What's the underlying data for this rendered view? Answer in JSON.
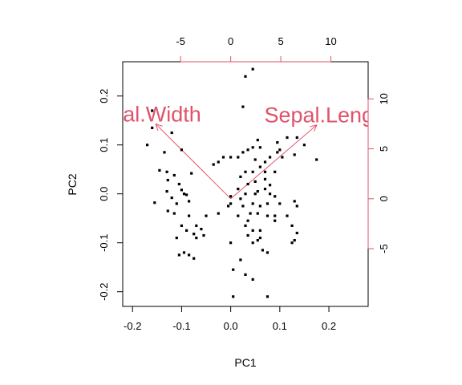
{
  "chart_data": {
    "type": "scatter",
    "subtype": "pca-biplot",
    "title": "",
    "xlabel": "PC1",
    "ylabel": "PC2",
    "xlim": [
      -0.22,
      0.28
    ],
    "ylim": [
      -0.23,
      0.27
    ],
    "x_ticks": [
      "-0.2",
      "-0.1",
      "0.0",
      "0.1",
      "0.2"
    ],
    "y_ticks": [
      "-0.2",
      "-0.1",
      "0.0",
      "0.1",
      "0.2"
    ],
    "secondary_x_ticks": [
      "-5",
      "0",
      "5",
      "10"
    ],
    "secondary_y_ticks": [
      "-5",
      "0",
      "5",
      "10"
    ],
    "secondary_xlim": [
      -10.78,
      13.72
    ],
    "secondary_ylim": [
      -10.78,
      13.72
    ],
    "point_color": "#000000",
    "arrow_color": "#DF536B",
    "grid": false,
    "points": [
      [
        -0.16,
        0.17
      ],
      [
        -0.17,
        0.1
      ],
      [
        -0.16,
        0.135
      ],
      [
        -0.135,
        0.085
      ],
      [
        -0.1,
        0.09
      ],
      [
        -0.12,
        0.125
      ],
      [
        -0.145,
        0.048
      ],
      [
        -0.13,
        0.045
      ],
      [
        -0.115,
        0.038
      ],
      [
        -0.08,
        0.042
      ],
      [
        -0.128,
        0.028
      ],
      [
        -0.105,
        0.02
      ],
      [
        -0.1,
        0.008
      ],
      [
        -0.095,
        0.0
      ],
      [
        -0.13,
        0.005
      ],
      [
        -0.155,
        -0.018
      ],
      [
        -0.09,
        -0.002
      ],
      [
        -0.12,
        -0.008
      ],
      [
        -0.11,
        -0.02
      ],
      [
        -0.085,
        -0.015
      ],
      [
        -0.128,
        -0.035
      ],
      [
        -0.115,
        -0.04
      ],
      [
        -0.085,
        -0.045
      ],
      [
        -0.05,
        -0.045
      ],
      [
        -0.1,
        -0.065
      ],
      [
        -0.07,
        -0.065
      ],
      [
        -0.06,
        -0.072
      ],
      [
        -0.09,
        -0.075
      ],
      [
        -0.075,
        -0.082
      ],
      [
        -0.055,
        -0.085
      ],
      [
        -0.07,
        -0.09
      ],
      [
        -0.11,
        -0.09
      ],
      [
        -0.095,
        -0.12
      ],
      [
        -0.085,
        -0.125
      ],
      [
        -0.105,
        -0.125
      ],
      [
        -0.075,
        -0.132
      ],
      [
        0.03,
        0.24
      ],
      [
        0.045,
        0.255
      ],
      [
        0.025,
        0.178
      ],
      [
        0.095,
        0.105
      ],
      [
        0.115,
        0.115
      ],
      [
        0.135,
        0.115
      ],
      [
        0.15,
        0.1
      ],
      [
        0.1,
        0.09
      ],
      [
        0.095,
        0.085
      ],
      [
        0.13,
        0.08
      ],
      [
        0.175,
        0.07
      ],
      [
        0.105,
        0.075
      ],
      [
        0.055,
        0.11
      ],
      [
        0.045,
        0.095
      ],
      [
        0.06,
        0.095
      ],
      [
        0.035,
        0.09
      ],
      [
        0.025,
        0.085
      ],
      [
        0.0,
        0.075
      ],
      [
        0.015,
        0.075
      ],
      [
        -0.015,
        0.075
      ],
      [
        -0.035,
        0.06
      ],
      [
        -0.025,
        0.065
      ],
      [
        0.05,
        0.07
      ],
      [
        0.08,
        0.075
      ],
      [
        0.07,
        0.065
      ],
      [
        0.06,
        0.055
      ],
      [
        0.03,
        0.045
      ],
      [
        0.045,
        0.045
      ],
      [
        0.09,
        0.045
      ],
      [
        0.07,
        0.045
      ],
      [
        0.02,
        0.035
      ],
      [
        0.035,
        0.02
      ],
      [
        0.05,
        0.025
      ],
      [
        0.07,
        0.03
      ],
      [
        0.07,
        0.01
      ],
      [
        0.08,
        0.018
      ],
      [
        0.05,
        0.0
      ],
      [
        0.055,
        0.005
      ],
      [
        0.03,
        0.0
      ],
      [
        0.015,
        0.01
      ],
      [
        0.0,
        -0.005
      ],
      [
        0.02,
        -0.01
      ],
      [
        0.08,
        0.0
      ],
      [
        0.09,
        -0.005
      ],
      [
        0.0,
        -0.02
      ],
      [
        -0.005,
        -0.025
      ],
      [
        0.025,
        -0.025
      ],
      [
        0.045,
        -0.02
      ],
      [
        0.06,
        -0.025
      ],
      [
        0.075,
        -0.02
      ],
      [
        0.1,
        -0.02
      ],
      [
        0.13,
        -0.015
      ],
      [
        0.135,
        -0.025
      ],
      [
        -0.025,
        -0.04
      ],
      [
        0.015,
        -0.045
      ],
      [
        0.04,
        -0.04
      ],
      [
        0.055,
        -0.04
      ],
      [
        0.075,
        -0.045
      ],
      [
        0.09,
        -0.045
      ],
      [
        0.115,
        -0.045
      ],
      [
        0.09,
        -0.055
      ],
      [
        0.035,
        -0.055
      ],
      [
        0.03,
        -0.065
      ],
      [
        0.045,
        -0.075
      ],
      [
        0.06,
        -0.075
      ],
      [
        0.125,
        -0.065
      ],
      [
        0.135,
        -0.08
      ],
      [
        0.035,
        -0.085
      ],
      [
        0.06,
        -0.09
      ],
      [
        0.055,
        -0.095
      ],
      [
        0.13,
        -0.095
      ],
      [
        0.045,
        -0.1
      ],
      [
        0.125,
        -0.1
      ],
      [
        0.0,
        -0.1
      ],
      [
        0.065,
        -0.115
      ],
      [
        0.075,
        -0.12
      ],
      [
        0.02,
        -0.135
      ],
      [
        0.005,
        -0.155
      ],
      [
        0.03,
        -0.165
      ],
      [
        0.045,
        -0.175
      ],
      [
        0.075,
        -0.21
      ],
      [
        0.005,
        -0.21
      ]
    ],
    "arrows": [
      {
        "name": "Petal.Width",
        "shown_text": ".Width",
        "x2": -7.5,
        "y2": 7.5
      },
      {
        "name": "Sepal.Length",
        "shown_text": "Sepal.Len",
        "x2": 8.6,
        "y2": 7.4
      }
    ]
  }
}
